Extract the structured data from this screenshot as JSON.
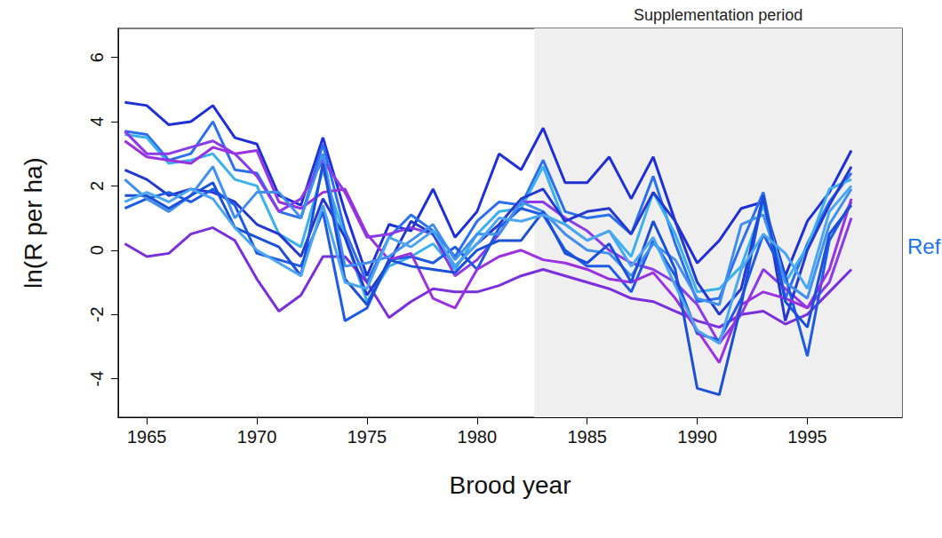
{
  "chart_data": {
    "type": "line",
    "x_label": "Brood year",
    "y_label": "ln(R per ha)",
    "x": [
      1964,
      1965,
      1966,
      1967,
      1968,
      1969,
      1970,
      1971,
      1972,
      1973,
      1974,
      1975,
      1976,
      1977,
      1978,
      1979,
      1980,
      1981,
      1982,
      1983,
      1984,
      1985,
      1986,
      1987,
      1988,
      1989,
      1990,
      1991,
      1992,
      1993,
      1994,
      1995,
      1996,
      1997
    ],
    "xlim": [
      1963.7,
      1999.3
    ],
    "xticks": [
      1965,
      1970,
      1975,
      1980,
      1985,
      1990,
      1995
    ],
    "ylim": [
      -5.2,
      6.9
    ],
    "yticks": [
      -4,
      -2,
      0,
      2,
      4,
      6
    ],
    "grid": false,
    "marker": "none",
    "shaded_region": {
      "label": "Supplementation period",
      "x": [
        1982.6,
        1999.3
      ],
      "color": "#efefef"
    },
    "annotations": [
      {
        "text": "Ref",
        "color": "#1a73e8"
      }
    ],
    "series": [
      {
        "color": "#1f2fd8",
        "values": [
          4.6,
          4.5,
          3.9,
          4.0,
          4.5,
          3.5,
          3.3,
          1.7,
          1.4,
          3.5,
          1.2,
          -0.8,
          0.8,
          0.6,
          1.9,
          0.4,
          1.2,
          3.0,
          2.5,
          3.8,
          2.1,
          2.1,
          2.9,
          1.6,
          2.9,
          0.9,
          -0.4,
          0.3,
          1.3,
          1.5,
          -0.8,
          0.9,
          1.8,
          3.1
        ]
      },
      {
        "color": "#2a6ff0",
        "values": [
          3.7,
          3.6,
          2.8,
          3.0,
          4.0,
          2.5,
          2.4,
          1.2,
          1.0,
          3.3,
          0.6,
          -1.0,
          0.4,
          1.1,
          0.6,
          -0.2,
          0.9,
          1.5,
          1.4,
          2.8,
          1.2,
          1.0,
          1.1,
          0.5,
          2.3,
          0.2,
          -1.6,
          -1.5,
          0.2,
          1.8,
          -1.5,
          0.2,
          1.5,
          2.4
        ]
      },
      {
        "color": "#3ab0ee",
        "values": [
          3.6,
          3.5,
          2.7,
          2.8,
          3.0,
          2.2,
          2.0,
          0.5,
          0.1,
          2.5,
          0.4,
          -1.6,
          -0.5,
          -0.2,
          0.2,
          -0.6,
          0.5,
          1.2,
          1.3,
          2.6,
          0.8,
          0.3,
          0.6,
          -0.2,
          1.8,
          0.5,
          -1.3,
          -1.2,
          -0.5,
          1.4,
          -1.0,
          0.1,
          1.9,
          2.2
        ]
      },
      {
        "color": "#7a2fdc",
        "values": [
          0.2,
          -0.2,
          -0.1,
          0.5,
          0.7,
          0.3,
          -0.9,
          -1.9,
          -1.4,
          -0.2,
          -0.2,
          -1.0,
          -2.1,
          -1.6,
          -1.2,
          -1.3,
          -1.3,
          -1.1,
          -0.8,
          -0.6,
          -0.8,
          -1.0,
          -1.2,
          -1.5,
          -1.6,
          -1.9,
          -2.2,
          -2.4,
          -2.0,
          -1.9,
          -2.3,
          -2.0,
          -1.3,
          -0.6
        ]
      },
      {
        "color": "#8a3ae6",
        "values": [
          3.7,
          3.0,
          3.0,
          3.2,
          3.4,
          3.0,
          2.3,
          1.2,
          1.6,
          2.8,
          1.8,
          0.4,
          0.5,
          0.7,
          0.5,
          -0.8,
          -0.3,
          0.5,
          1.5,
          1.5,
          1.0,
          0.6,
          0.0,
          -0.4,
          -0.6,
          -1.0,
          -1.7,
          -2.9,
          -2.0,
          -0.6,
          -1.2,
          -1.8,
          -1.0,
          1.0
        ]
      },
      {
        "color": "#2438d0",
        "values": [
          2.5,
          2.2,
          1.7,
          1.9,
          1.8,
          1.5,
          0.8,
          0.5,
          -0.2,
          1.6,
          0.4,
          -1.4,
          -0.4,
          0.9,
          0.5,
          -0.5,
          0.2,
          0.8,
          1.6,
          1.9,
          0.9,
          1.2,
          1.3,
          0.5,
          1.8,
          0.9,
          -1.0,
          -2.0,
          -1.2,
          1.7,
          -2.2,
          0.0,
          1.4,
          2.6
        ]
      },
      {
        "color": "#1e5ae6",
        "values": [
          1.3,
          1.6,
          1.8,
          1.5,
          1.9,
          1.4,
          -0.1,
          -0.3,
          -0.5,
          1.2,
          -2.2,
          -1.8,
          -0.3,
          -0.2,
          -0.4,
          0.1,
          -0.6,
          0.7,
          1.3,
          1.1,
          0.0,
          -0.5,
          -0.5,
          -1.3,
          0.3,
          -0.8,
          -2.6,
          -2.8,
          -1.5,
          0.5,
          -0.8,
          -3.3,
          0.3,
          1.5
        ]
      },
      {
        "color": "#9b30e0",
        "values": [
          3.4,
          2.9,
          2.8,
          2.7,
          3.2,
          3.0,
          3.1,
          1.5,
          1.3,
          1.8,
          1.9,
          0.5,
          -0.3,
          -0.1,
          -1.5,
          -1.8,
          -0.6,
          -0.2,
          0.0,
          -0.3,
          -0.4,
          -0.6,
          -0.9,
          -1.0,
          -0.7,
          -1.5,
          -2.5,
          -3.5,
          -1.7,
          -1.3,
          -1.5,
          -1.8,
          -0.6,
          1.6
        ]
      },
      {
        "color": "#3f8ef0",
        "values": [
          2.2,
          1.6,
          1.2,
          1.7,
          2.6,
          1.0,
          1.8,
          1.8,
          1.0,
          3.0,
          -0.5,
          -0.4,
          -0.2,
          0.3,
          0.8,
          -0.3,
          0.5,
          0.5,
          1.5,
          1.2,
          0.5,
          0.0,
          -0.1,
          -0.8,
          0.2,
          -0.3,
          -1.5,
          -1.7,
          0.8,
          1.1,
          -1.0,
          -1.5,
          0.8,
          1.9
        ]
      },
      {
        "color": "#1a4fd8",
        "values": [
          1.7,
          1.7,
          1.3,
          1.7,
          2.1,
          0.7,
          0.4,
          0.1,
          -0.8,
          2.7,
          -0.9,
          -1.7,
          -0.3,
          -0.5,
          -0.6,
          -0.7,
          0.0,
          0.3,
          0.3,
          1.2,
          -0.1,
          -0.4,
          0.2,
          -1.0,
          0.9,
          -0.6,
          -4.3,
          -4.5,
          -1.7,
          1.7,
          -1.6,
          -2.4,
          0.5,
          1.4
        ]
      },
      {
        "color": "#4aa6f2",
        "values": [
          1.5,
          1.8,
          1.5,
          1.9,
          1.6,
          0.7,
          0.0,
          -0.4,
          -0.8,
          1.4,
          -1.0,
          -1.2,
          0.4,
          0.1,
          0.6,
          -0.5,
          0.2,
          1.0,
          0.9,
          1.1,
          0.8,
          0.3,
          0.6,
          -0.5,
          0.4,
          -1.1,
          -2.5,
          -2.9,
          -0.6,
          0.5,
          -0.1,
          -1.2,
          1.2,
          2.0
        ]
      }
    ]
  }
}
